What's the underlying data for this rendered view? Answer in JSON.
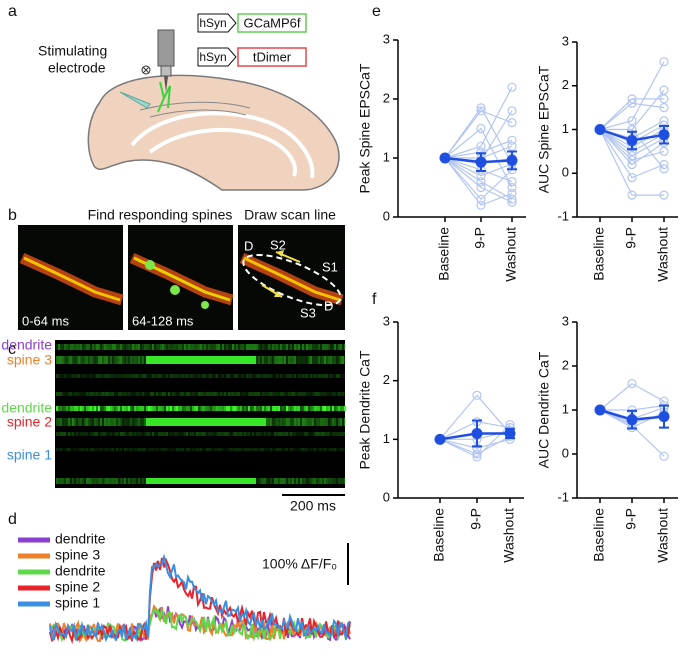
{
  "panel_labels": [
    "a",
    "b",
    "c",
    "d",
    "e",
    "f"
  ],
  "a": {
    "constructs": [
      {
        "promoter": "hSyn",
        "gene": "GCaMP6f",
        "color": "#5fcf52"
      },
      {
        "promoter": "hSyn",
        "gene": "tDimer",
        "color": "#e8474c"
      }
    ],
    "electrode_label": [
      "Stimulating",
      "electrode"
    ]
  },
  "b": {
    "titles": [
      "Find responding spines",
      "Draw scan line"
    ],
    "time_labels": [
      "0-64 ms",
      "64-128 ms"
    ],
    "scan_labels": [
      "D",
      "S2",
      "S1",
      "S3",
      "D"
    ]
  },
  "c": {
    "rows": [
      {
        "name": "dendrite",
        "color": "#8a3fd1"
      },
      {
        "name": "spine 3",
        "color": "#f07f2a"
      },
      {
        "name": "dendrite",
        "color": "#5fd84a"
      },
      {
        "name": "spine 2",
        "color": "#e8232a"
      },
      {
        "name": "spine 1",
        "color": "#3b8fe0"
      }
    ],
    "scale_bar": "200 ms"
  },
  "d": {
    "legend": [
      {
        "name": "dendrite",
        "color": "#8a3fd1"
      },
      {
        "name": "spine 3",
        "color": "#f07f2a"
      },
      {
        "name": "dendrite",
        "color": "#5fd84a"
      },
      {
        "name": "spine 2",
        "color": "#e8232a"
      },
      {
        "name": "spine 1",
        "color": "#3b8fe0"
      }
    ],
    "scale_bar": "100% ΔF/F₀"
  },
  "chart_data": [
    {
      "type": "line",
      "ylabel": "Peak Spine EPSCaT",
      "categories": [
        "Baseline",
        "9-P",
        "Washout"
      ],
      "ylim": [
        0,
        3
      ],
      "yticks": [
        0,
        1,
        2,
        3
      ],
      "series": [
        {
          "color": "#b3c6f2",
          "values": [
            1,
            1.85,
            0.9
          ]
        },
        {
          "color": "#b3c6f2",
          "values": [
            1,
            1.8,
            1.6
          ]
        },
        {
          "color": "#b3c6f2",
          "values": [
            1,
            1.2,
            2.2
          ]
        },
        {
          "color": "#b3c6f2",
          "values": [
            1,
            1.1,
            1.3
          ]
        },
        {
          "color": "#b3c6f2",
          "values": [
            1,
            0.9,
            1.0
          ]
        },
        {
          "color": "#b3c6f2",
          "values": [
            1,
            0.8,
            0.6
          ]
        },
        {
          "color": "#b3c6f2",
          "values": [
            1,
            0.6,
            0.3
          ]
        },
        {
          "color": "#b3c6f2",
          "values": [
            1,
            0.5,
            0.25
          ]
        },
        {
          "color": "#b3c6f2",
          "values": [
            1,
            0.2,
            0.4
          ]
        },
        {
          "color": "#b3c6f2",
          "values": [
            1,
            0.95,
            1.8
          ]
        },
        {
          "color": "#b3c6f2",
          "values": [
            1,
            1.0,
            1.2
          ]
        },
        {
          "color": "#b3c6f2",
          "values": [
            1,
            0.7,
            0.9
          ]
        },
        {
          "color": "#b3c6f2",
          "values": [
            1,
            1.5,
            0.5
          ]
        },
        {
          "color": "#b3c6f2",
          "values": [
            1,
            0.3,
            0.8
          ]
        },
        {
          "color": "#1f4fe0",
          "values": [
            1,
            0.93,
            0.96
          ],
          "errors": [
            0,
            0.15,
            0.15
          ]
        }
      ]
    },
    {
      "type": "line",
      "ylabel": "AUC Spine EPSCaT",
      "categories": [
        "Baseline",
        "9-P",
        "Washout"
      ],
      "ylim": [
        -1,
        3
      ],
      "yticks": [
        -1,
        0,
        1,
        2,
        3
      ],
      "series": [
        {
          "color": "#b3c6f2",
          "values": [
            1,
            1.7,
            1.7
          ]
        },
        {
          "color": "#b3c6f2",
          "values": [
            1,
            1.6,
            1.5
          ]
        },
        {
          "color": "#b3c6f2",
          "values": [
            1,
            1.2,
            2.55
          ]
        },
        {
          "color": "#b3c6f2",
          "values": [
            1,
            1.0,
            1.9
          ]
        },
        {
          "color": "#b3c6f2",
          "values": [
            1,
            0.8,
            1.2
          ]
        },
        {
          "color": "#b3c6f2",
          "values": [
            1,
            0.6,
            1.0
          ]
        },
        {
          "color": "#b3c6f2",
          "values": [
            1,
            0.4,
            0.8
          ]
        },
        {
          "color": "#b3c6f2",
          "values": [
            1,
            0.3,
            0.5
          ]
        },
        {
          "color": "#b3c6f2",
          "values": [
            1,
            -0.1,
            0.2
          ]
        },
        {
          "color": "#b3c6f2",
          "values": [
            1,
            -0.5,
            -0.5
          ]
        },
        {
          "color": "#b3c6f2",
          "values": [
            1,
            1.0,
            0.1
          ]
        },
        {
          "color": "#b3c6f2",
          "values": [
            1,
            0.7,
            1.1
          ]
        },
        {
          "color": "#b3c6f2",
          "values": [
            1,
            0.5,
            0.9
          ]
        },
        {
          "color": "#b3c6f2",
          "values": [
            1,
            0.2,
            0.7
          ]
        },
        {
          "color": "#1f4fe0",
          "values": [
            1,
            0.75,
            0.88
          ],
          "errors": [
            0,
            0.2,
            0.2
          ]
        }
      ]
    },
    {
      "type": "line",
      "ylabel": "Peak Dendrite CaT",
      "categories": [
        "Baseline",
        "9-P",
        "Washout"
      ],
      "ylim": [
        0,
        3
      ],
      "yticks": [
        0,
        1,
        2,
        3
      ],
      "series": [
        {
          "color": "#b3c6f2",
          "values": [
            1,
            1.75,
            1.1
          ]
        },
        {
          "color": "#b3c6f2",
          "values": [
            1,
            1.3,
            1.2
          ]
        },
        {
          "color": "#b3c6f2",
          "values": [
            1,
            1.0,
            1.15
          ]
        },
        {
          "color": "#b3c6f2",
          "values": [
            1,
            0.85,
            1.0
          ]
        },
        {
          "color": "#b3c6f2",
          "values": [
            1,
            0.75,
            1.05
          ]
        },
        {
          "color": "#b3c6f2",
          "values": [
            1,
            0.7,
            1.25
          ]
        },
        {
          "color": "#1f4fe0",
          "values": [
            1,
            1.1,
            1.1
          ],
          "errors": [
            0,
            0.22,
            0.08
          ]
        }
      ]
    },
    {
      "type": "line",
      "ylabel": "AUC Dendrite CaT",
      "categories": [
        "Baseline",
        "9-P",
        "Washout"
      ],
      "ylim": [
        -1,
        3
      ],
      "yticks": [
        -1,
        0,
        1,
        2,
        3
      ],
      "series": [
        {
          "color": "#b3c6f2",
          "values": [
            1,
            1.6,
            1.2
          ]
        },
        {
          "color": "#b3c6f2",
          "values": [
            1,
            1.0,
            1.1
          ]
        },
        {
          "color": "#b3c6f2",
          "values": [
            1,
            0.8,
            1.05
          ]
        },
        {
          "color": "#b3c6f2",
          "values": [
            1,
            0.7,
            0.9
          ]
        },
        {
          "color": "#b3c6f2",
          "values": [
            1,
            0.65,
            -0.05
          ]
        },
        {
          "color": "#b3c6f2",
          "values": [
            1,
            0.6,
            0.95
          ]
        },
        {
          "color": "#1f4fe0",
          "values": [
            1,
            0.78,
            0.85
          ],
          "errors": [
            0,
            0.2,
            0.25
          ]
        }
      ]
    }
  ]
}
